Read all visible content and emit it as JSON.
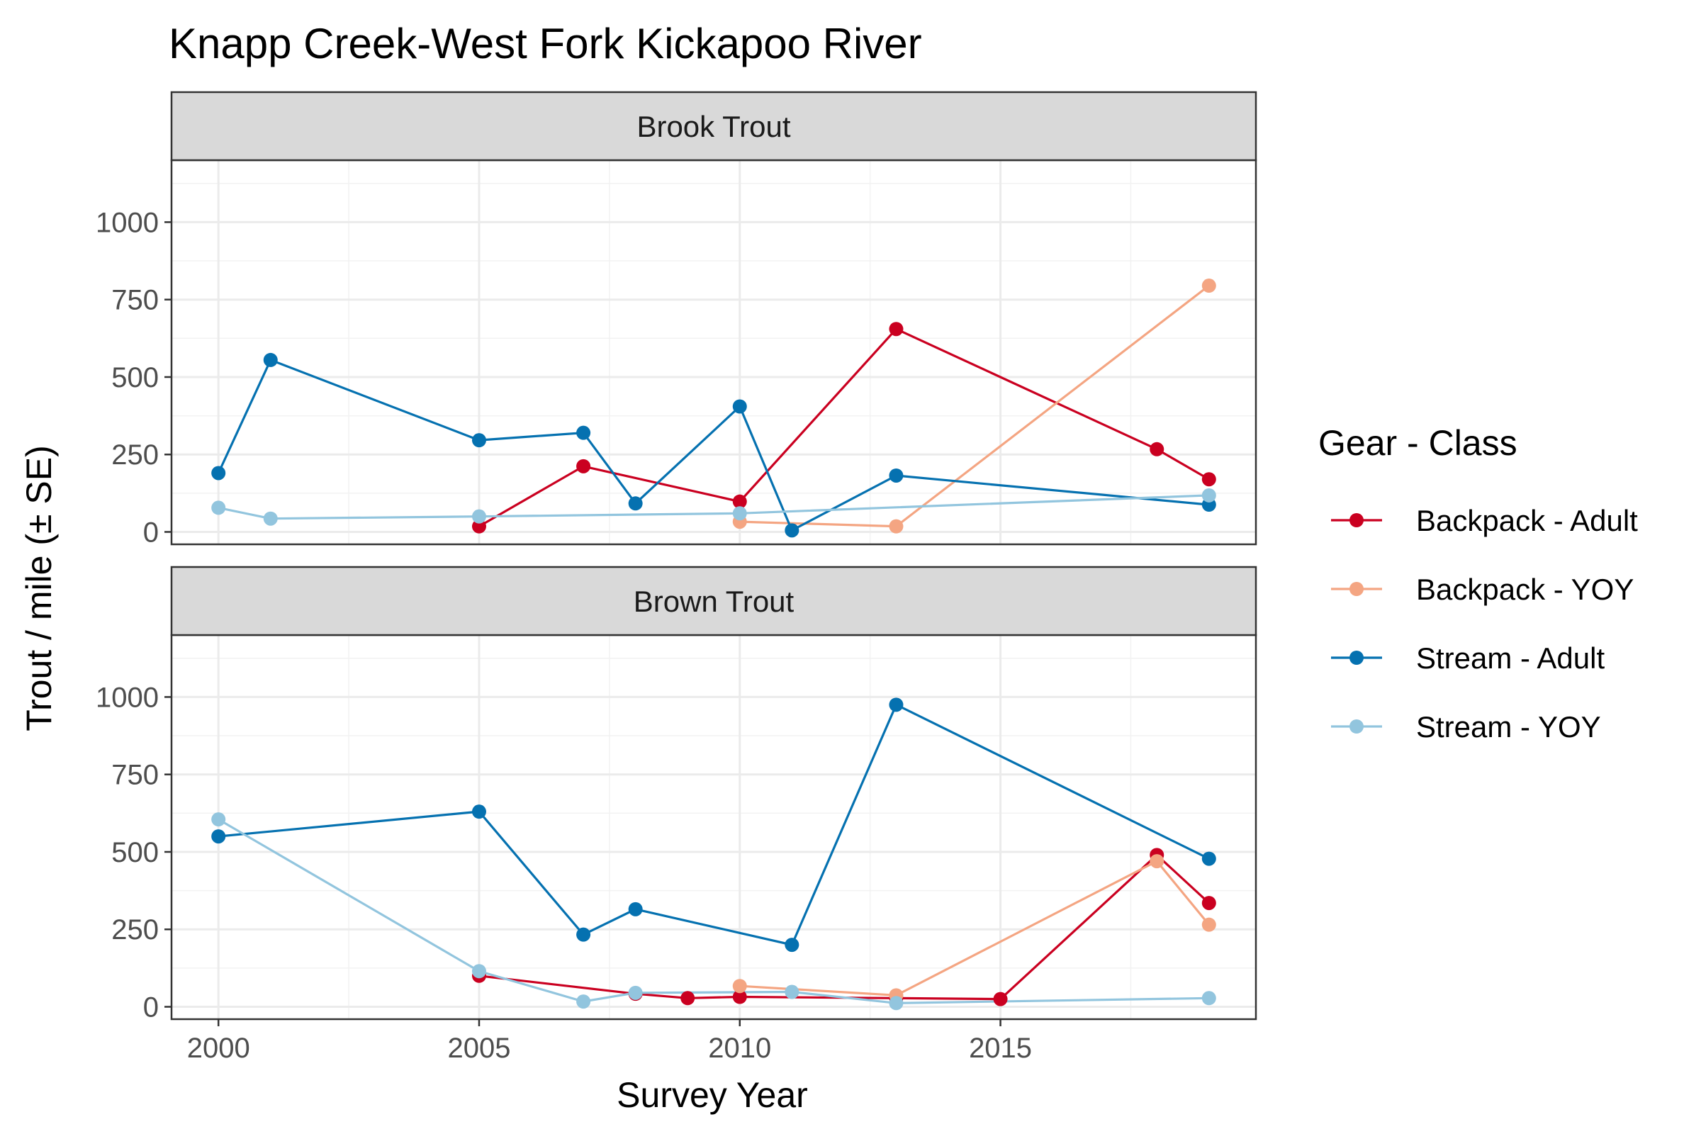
{
  "chart_data": {
    "type": "line",
    "title": "Knapp Creek-West Fork Kickapoo River",
    "xlabel": "Survey Year",
    "ylabel": "Trout / mile (± SE)",
    "xlim": [
      1999.1,
      2019.9
    ],
    "ylim": [
      -40,
      1200
    ],
    "x_ticks": [
      2000,
      2005,
      2010,
      2015
    ],
    "x_tick_labels": [
      "2000",
      "2005",
      "2010",
      "2015"
    ],
    "y_ticks": [
      0,
      250,
      500,
      750,
      1000
    ],
    "y_tick_labels": [
      "0",
      "250",
      "500",
      "750",
      "1000"
    ],
    "grid": true,
    "legend": {
      "title": "Gear - Class",
      "position": "right",
      "entries": [
        {
          "label": "Backpack - Adult",
          "color": "#ca0020"
        },
        {
          "label": "Backpack - YOY",
          "color": "#f4a582"
        },
        {
          "label": "Stream - Adult",
          "color": "#0571b0"
        },
        {
          "label": "Stream - YOY",
          "color": "#92c5de"
        }
      ]
    },
    "panels": [
      {
        "label": "Brook Trout",
        "series": [
          {
            "name": "Backpack - Adult",
            "color": "#ca0020",
            "points": [
              [
                2005,
                18
              ],
              [
                2007,
                212
              ],
              [
                2010,
                98
              ],
              [
                2013,
                655
              ],
              [
                2018,
                267
              ],
              [
                2019,
                170
              ]
            ]
          },
          {
            "name": "Backpack - YOY",
            "color": "#f4a582",
            "points": [
              [
                2010,
                33
              ],
              [
                2013,
                18
              ],
              [
                2019,
                795
              ]
            ]
          },
          {
            "name": "Stream - Adult",
            "color": "#0571b0",
            "points": [
              [
                2000,
                190
              ],
              [
                2001,
                555
              ],
              [
                2005,
                296
              ],
              [
                2007,
                320
              ],
              [
                2008,
                92
              ],
              [
                2010,
                405
              ],
              [
                2011,
                5
              ],
              [
                2013,
                182
              ],
              [
                2019,
                88
              ]
            ]
          },
          {
            "name": "Stream - YOY",
            "color": "#92c5de",
            "points": [
              [
                2000,
                78
              ],
              [
                2001,
                43
              ],
              [
                2005,
                50
              ],
              [
                2010,
                60
              ],
              [
                2019,
                118
              ]
            ]
          }
        ]
      },
      {
        "label": "Brown Trout",
        "series": [
          {
            "name": "Backpack - Adult",
            "color": "#ca0020",
            "points": [
              [
                2005,
                100
              ],
              [
                2008,
                42
              ],
              [
                2009,
                28
              ],
              [
                2010,
                32
              ],
              [
                2013,
                28
              ],
              [
                2015,
                25
              ],
              [
                2018,
                490
              ],
              [
                2019,
                335
              ]
            ]
          },
          {
            "name": "Backpack - YOY",
            "color": "#f4a582",
            "points": [
              [
                2010,
                67
              ],
              [
                2013,
                37
              ],
              [
                2018,
                470
              ],
              [
                2019,
                265
              ]
            ]
          },
          {
            "name": "Stream - Adult",
            "color": "#0571b0",
            "points": [
              [
                2000,
                550
              ],
              [
                2005,
                630
              ],
              [
                2007,
                233
              ],
              [
                2008,
                315
              ],
              [
                2011,
                200
              ],
              [
                2013,
                975
              ],
              [
                2019,
                478
              ]
            ]
          },
          {
            "name": "Stream - YOY",
            "color": "#92c5de",
            "points": [
              [
                2000,
                605
              ],
              [
                2005,
                115
              ],
              [
                2007,
                17
              ],
              [
                2008,
                45
              ],
              [
                2011,
                48
              ],
              [
                2013,
                12
              ],
              [
                2019,
                28
              ]
            ]
          }
        ]
      }
    ]
  }
}
